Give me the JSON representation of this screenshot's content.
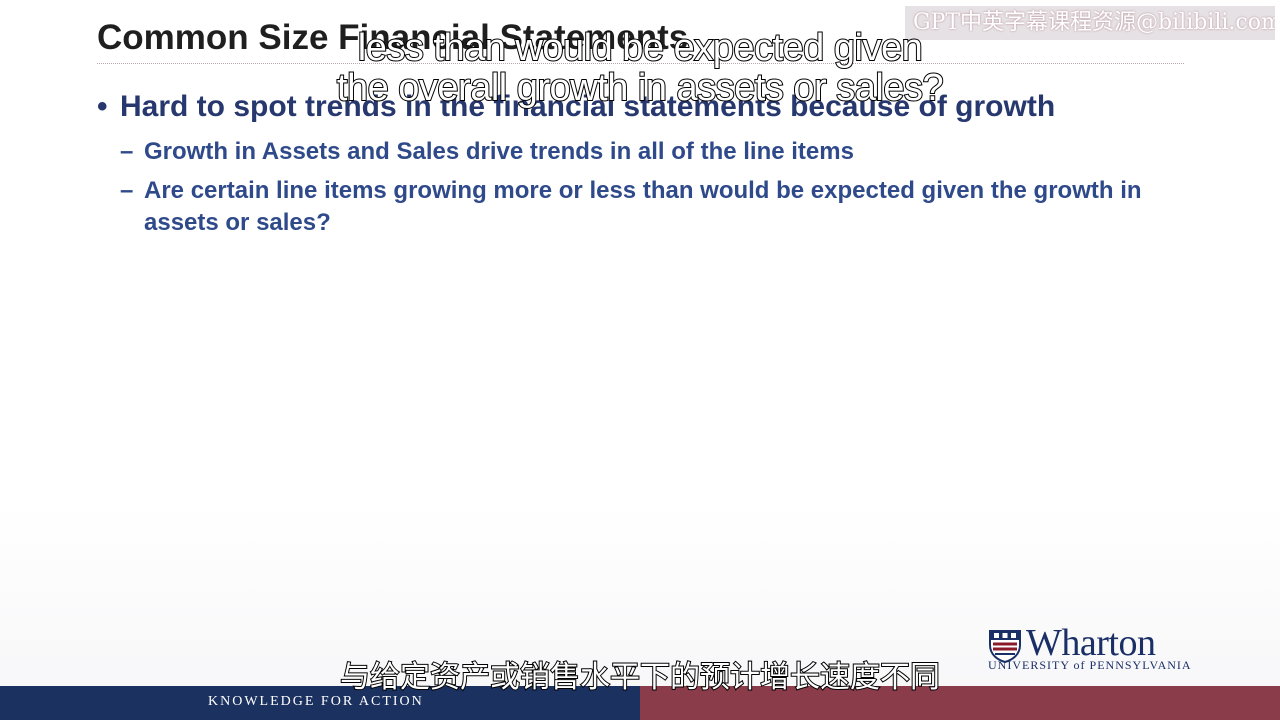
{
  "slide": {
    "title": "Common Size Financial Statements",
    "bullet_main": "Hard to spot trends in the financial statements because of growth",
    "bullet_symbol": "•",
    "dash_symbol": "–",
    "sub_bullets": [
      "Growth in Assets and Sales drive trends in all of the line items",
      "Are certain line items growing more or less than would be expected given the growth in assets or sales?"
    ]
  },
  "subtitles": {
    "english_line1": "less than would be expected given",
    "english_line2": "the overall growth in assets or sales?",
    "chinese": "与给定资产或销售水平下的预计增长速度不同"
  },
  "watermark": {
    "text": "GPT中英字幕课程资源@bilibili.com"
  },
  "logo": {
    "wordmark": "Wharton",
    "university": "UNIVERSITY of PENNSYLVANIA"
  },
  "footer": {
    "tagline": "KNOWLEDGE FOR ACTION",
    "left_color": "#1b3160",
    "right_color": "#8a3c4a"
  },
  "colors": {
    "title": "#1f1f1f",
    "bullet_main": "#27386e",
    "bullet_sub": "#2f4a8a"
  }
}
